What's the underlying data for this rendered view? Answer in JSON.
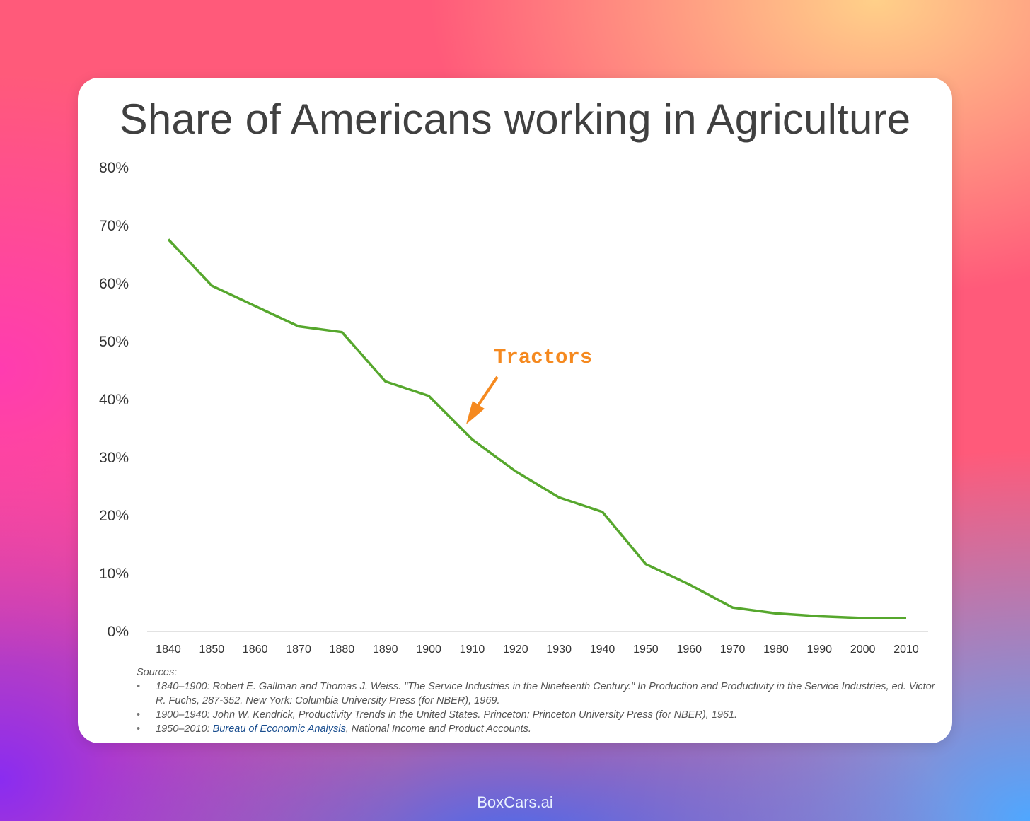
{
  "colors": {
    "line": "#56a72d",
    "annotation": "#f5891f",
    "axis": "#d9d9d9",
    "title": "#404040"
  },
  "chart_data": {
    "type": "line",
    "title": "Share of Americans working in Agriculture",
    "xlabel": "",
    "ylabel": "",
    "ylim": [
      0,
      80
    ],
    "ytick_labels": [
      "0%",
      "10%",
      "20%",
      "30%",
      "40%",
      "50%",
      "60%",
      "70%",
      "80%"
    ],
    "yticks": [
      0,
      10,
      20,
      30,
      40,
      50,
      60,
      70,
      80
    ],
    "x": [
      "1840",
      "1850",
      "1860",
      "1870",
      "1880",
      "1890",
      "1900",
      "1910",
      "1920",
      "1930",
      "1940",
      "1950",
      "1960",
      "1970",
      "1980",
      "1990",
      "2000",
      "2010"
    ],
    "series": [
      {
        "name": "Share of Americans working in Agriculture",
        "values": [
          67.5,
          59.5,
          56.0,
          52.5,
          51.5,
          43.0,
          40.5,
          33.0,
          27.5,
          23.0,
          20.5,
          11.5,
          8.0,
          4.0,
          3.0,
          2.5,
          2.2,
          2.2
        ]
      }
    ],
    "annotation": {
      "text": "Tractors",
      "points_to_x": 1910
    }
  },
  "sources": {
    "heading": "Sources:",
    "items": [
      {
        "text": "1840–1900: Robert E. Gallman and Thomas J. Weiss. \"The Service Industries in the Nineteenth Century.\" In Production and Productivity in the Service Industries, ed. Victor R. Fuchs, 287-352. New York: Columbia University Press (for NBER), 1969."
      },
      {
        "text": "1900–1940: John W. Kendrick, Productivity Trends in the United States. Princeton: Princeton University Press (for NBER), 1961."
      },
      {
        "prefix": "1950–2010: ",
        "link": "Bureau of Economic Analysis",
        "suffix": ", National Income and Product Accounts."
      }
    ]
  },
  "footer": {
    "brand": "BoxCars.ai"
  }
}
